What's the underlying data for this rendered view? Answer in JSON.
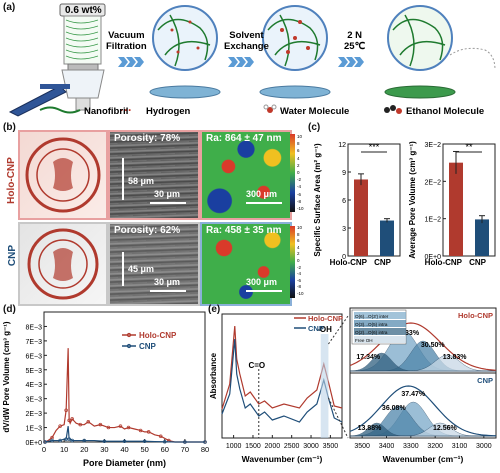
{
  "panel_a": {
    "label": "(a)",
    "concentration": "0.6 wt%",
    "steps": [
      "Vacuum\nFiltration",
      "Solvent\nExchange",
      "2 N\n25℃"
    ],
    "legend": [
      "Nanofibril",
      "Hydrogen",
      "Water Molecule",
      "Ethanol Molecule"
    ]
  },
  "panel_b": {
    "label": "(b)",
    "rows": [
      {
        "name": "Holo-CNP",
        "porosity": "Porosity: 78%",
        "thickness": "58 μm",
        "sem_scale": "30 μm",
        "ra": "Ra: 864 ± 47 nm",
        "afm_scale": "300 μm"
      },
      {
        "name": "CNP",
        "porosity": "Porosity: 62%",
        "thickness": "45 μm",
        "sem_scale": "30 μm",
        "ra": "Ra: 458 ± 35 nm",
        "afm_scale": "300 μm"
      }
    ],
    "colorbar_ticks": [
      "10",
      "8",
      "6",
      "4",
      "2",
      "0",
      "-2",
      "-4",
      "-6",
      "-8",
      "-10"
    ]
  },
  "panel_c": {
    "label": "(c)",
    "significance": [
      "***",
      "**"
    ]
  },
  "panel_d": {
    "label": "(d)"
  },
  "panel_e": {
    "label": "(e)",
    "peak_labels": [
      "C=O",
      "-OH"
    ],
    "deconv_legend": [
      "O(6)...O(3') inter",
      "O(3)...O(5) intra",
      "O(2)...O(6) intra",
      "Free OH"
    ],
    "fit_labels": [
      "Holo-CNP",
      "CNP"
    ],
    "holo_pcts": [
      "38.33%",
      "30.50%",
      "17.34%",
      "13.83%"
    ],
    "cnp_pcts": [
      "37.47%",
      "36.08%",
      "13.88%",
      "12.56%"
    ]
  },
  "colors": {
    "holo": "#b03a2e",
    "cnp": "#1f4e79",
    "arrow": "#2e75b6"
  },
  "chart_data": [
    {
      "type": "bar",
      "ylabel": "Specific Surface Area (m² g⁻¹)",
      "categories": [
        "Holo-CNP",
        "CNP"
      ],
      "values": [
        8.2,
        3.8
      ],
      "errors": [
        0.6,
        0.2
      ],
      "ylim": [
        0,
        12
      ],
      "yticks": [
        "0",
        "3",
        "6",
        "9",
        "12"
      ]
    },
    {
      "type": "bar",
      "ylabel": "Average Pore Volume (cm³ g⁻¹)",
      "categories": [
        "Holo-CNP",
        "CNP"
      ],
      "values": [
        0.025,
        0.0098
      ],
      "errors": [
        0.003,
        0.001
      ],
      "ylim": [
        0,
        0.03
      ],
      "yticks": [
        "0E+0",
        "1E−2",
        "2E−2",
        "3E−2"
      ]
    },
    {
      "type": "line",
      "xlabel": "Pore Diameter (nm)",
      "ylabel": "dV/dW Pore Volume (cm³ g⁻¹)",
      "xlim": [
        0,
        80
      ],
      "ylim": [
        0,
        0.009
      ],
      "xticks": [
        "0",
        "10",
        "20",
        "30",
        "40",
        "50",
        "60",
        "70",
        "80"
      ],
      "yticks": [
        "0E+0",
        "1E−3",
        "2E−3",
        "3E−3",
        "4E−3",
        "5E−3",
        "6E−3",
        "7E−3",
        "8E−3"
      ],
      "legend": "top-right",
      "series": [
        {
          "name": "Holo-CNP",
          "x": [
            0.5,
            2,
            4,
            6,
            8,
            10,
            11,
            12,
            12.5,
            13,
            14,
            16,
            18,
            20,
            22,
            25,
            28,
            30,
            32,
            35,
            38,
            40,
            42,
            45,
            48,
            50,
            52,
            55,
            58,
            60,
            62,
            65,
            70,
            75,
            80
          ],
          "y": [
            0,
            0.0001,
            0.0003,
            0.0008,
            0.0011,
            0.0012,
            0.0022,
            0.0065,
            0.0015,
            0.0013,
            0.0016,
            0.0013,
            0.0012,
            0.0012,
            0.0014,
            0.0011,
            0.0012,
            0.0011,
            0.001,
            0.001,
            0.0011,
            0.0009,
            0.001,
            0.0009,
            0.0008,
            0.0007,
            0.0007,
            0.0005,
            0.0004,
            0.00025,
            0.0001,
            0,
            0,
            0,
            0
          ]
        },
        {
          "name": "CNP",
          "x": [
            0.5,
            2,
            4,
            6,
            8,
            10,
            11,
            12,
            12.5,
            13,
            14,
            16,
            20,
            25,
            30,
            35,
            40,
            45,
            50,
            55,
            60,
            65,
            70,
            75,
            80
          ],
          "y": [
            0,
            5e-05,
            0.0001,
            0.0001,
            0.0001,
            0.0002,
            0.0002,
            0.0011,
            0.0002,
            0.0002,
            0.0001,
            0.0001,
            0.0001,
            0.0001,
            5e-05,
            5e-05,
            5e-05,
            5e-05,
            5e-05,
            3e-05,
            2e-05,
            0,
            0,
            0,
            0
          ]
        }
      ]
    },
    {
      "type": "line",
      "xlabel": "Wavenumber (cm⁻¹)",
      "ylabel": "Absorbance",
      "xticks": [
        "1000",
        "1500",
        "2000",
        "2500",
        "3000",
        "3500"
      ],
      "legend": "top-right",
      "series": [
        {
          "name": "Holo-CNP"
        },
        {
          "name": "CNP"
        }
      ]
    },
    {
      "type": "area",
      "xlabel": "Wavenumber (cm⁻¹)",
      "xticks": [
        "3500",
        "3400",
        "3300",
        "3200",
        "3100",
        "3000"
      ]
    }
  ]
}
